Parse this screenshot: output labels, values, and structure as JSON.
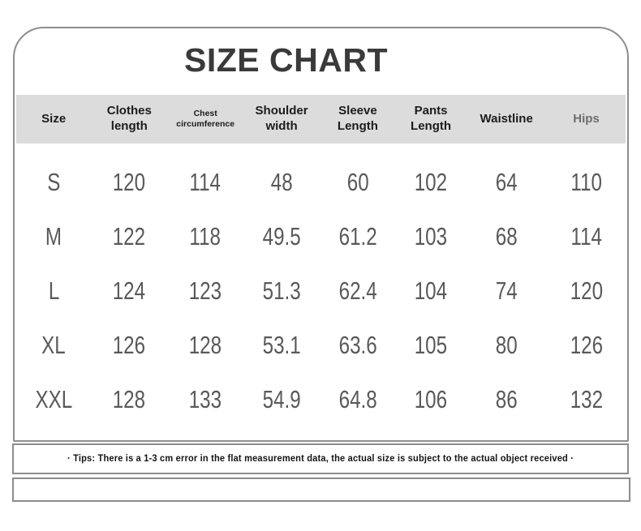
{
  "chart_data": {
    "type": "table",
    "title": "SIZE CHART",
    "columns": [
      "Size",
      "Clothes length",
      "Chest circumference",
      "Shoulder width",
      "Sleeve Length",
      "Pants Length",
      "Waistline",
      "Hips"
    ],
    "rows": [
      {
        "size": "S",
        "values": [
          120,
          114,
          48,
          60,
          102,
          64,
          110
        ]
      },
      {
        "size": "M",
        "values": [
          122,
          118,
          49.5,
          61.2,
          103,
          68,
          114
        ]
      },
      {
        "size": "L",
        "values": [
          124,
          123,
          51.3,
          62.4,
          104,
          74,
          120
        ]
      },
      {
        "size": "XL",
        "values": [
          126,
          128,
          53.1,
          63.6,
          105,
          80,
          126
        ]
      },
      {
        "size": "XXL",
        "values": [
          128,
          133,
          54.9,
          64.8,
          106,
          86,
          132
        ]
      }
    ]
  },
  "tips": "· Tips: There is a 1-3 cm error in the flat measurement data, the actual size is subject to the actual object received ·",
  "colors": {
    "header_band": "#dcdcdc",
    "card_border": "#8d8d8d",
    "title_text": "#3a3a3a",
    "header_text": "#1c1c1c",
    "hips_header_text": "#6e6e6e",
    "data_text": "#58595a"
  }
}
